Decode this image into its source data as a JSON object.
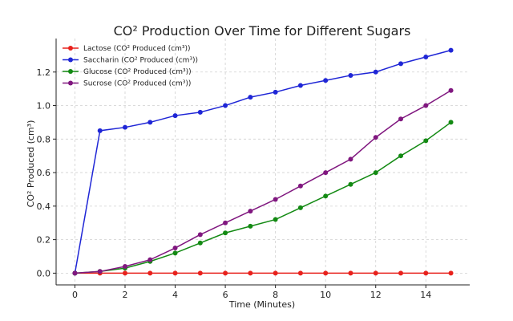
{
  "chart_data": {
    "type": "line",
    "title": "CO² Production Over Time for Different Sugars",
    "xlabel": "Time (Minutes)",
    "ylabel": "CO² Produced (cm³)",
    "xlim": [
      -0.75,
      15.75
    ],
    "ylim": [
      -0.07,
      1.4
    ],
    "xticks": [
      0,
      2,
      4,
      6,
      8,
      10,
      12,
      14
    ],
    "yticks": [
      0.0,
      0.2,
      0.4,
      0.6,
      0.8,
      1.0,
      1.2
    ],
    "ytick_labels": [
      "0.0",
      "0.2",
      "0.4",
      "0.6",
      "0.8",
      "1.0",
      "1.2"
    ],
    "grid": true,
    "legend_position": "top-left",
    "x": [
      0,
      1,
      2,
      3,
      4,
      5,
      6,
      7,
      8,
      9,
      10,
      11,
      12,
      13,
      14,
      15
    ],
    "series": [
      {
        "name": "Lactose (CO² Produced (cm³))",
        "color": "#e8211c",
        "values": [
          0,
          0,
          0,
          0,
          0,
          0,
          0,
          0,
          0,
          0,
          0,
          0,
          0,
          0,
          0,
          0
        ]
      },
      {
        "name": "Saccharin (CO² Produced (cm³))",
        "color": "#1f26d6",
        "values": [
          0,
          0.85,
          0.87,
          0.9,
          0.94,
          0.96,
          1.0,
          1.05,
          1.08,
          1.12,
          1.15,
          1.18,
          1.2,
          1.25,
          1.29,
          1.33
        ]
      },
      {
        "name": "Glucose (CO² Produced (cm³))",
        "color": "#138a13",
        "values": [
          0,
          0.01,
          0.03,
          0.07,
          0.12,
          0.18,
          0.24,
          0.28,
          0.32,
          0.39,
          0.46,
          0.53,
          0.6,
          0.7,
          0.79,
          0.9
        ]
      },
      {
        "name": "Sucrose (CO² Produced (cm³))",
        "color": "#80177f",
        "values": [
          0,
          0.01,
          0.04,
          0.08,
          0.15,
          0.23,
          0.3,
          0.37,
          0.44,
          0.52,
          0.6,
          0.68,
          0.81,
          0.92,
          1.0,
          1.09
        ]
      }
    ]
  }
}
